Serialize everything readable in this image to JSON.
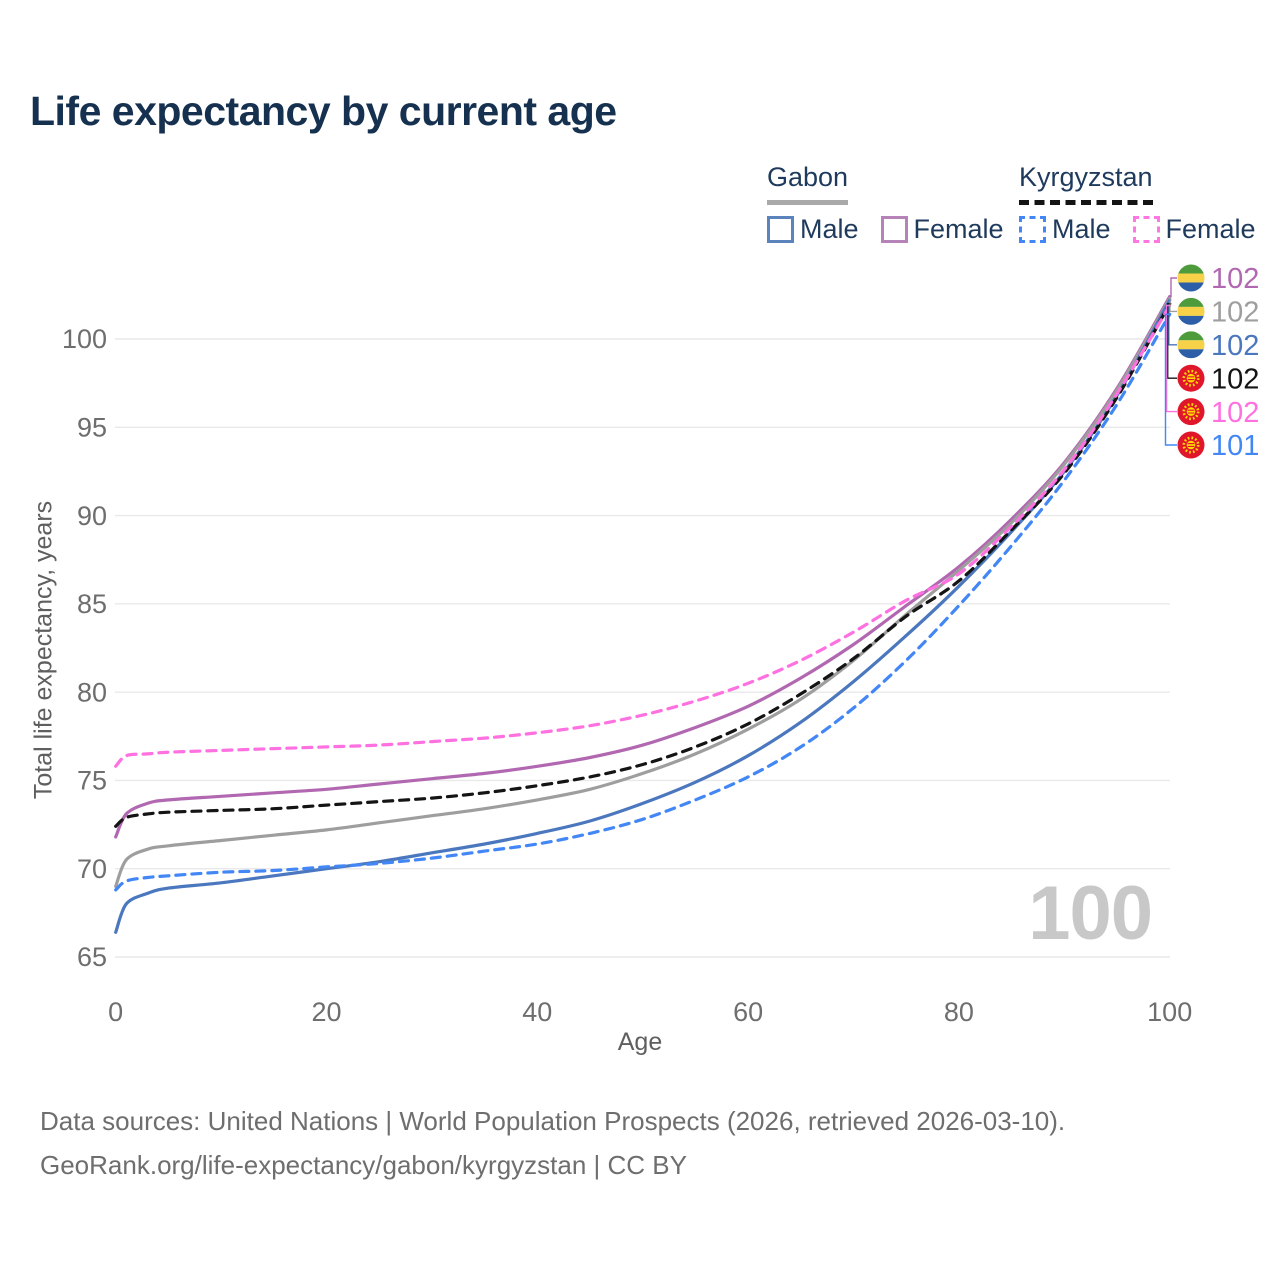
{
  "title": "Life expectancy by current age",
  "legend": {
    "groups": [
      {
        "title": "Gabon",
        "line_style": "solid",
        "items": [
          {
            "label": "Male"
          },
          {
            "label": "Female"
          }
        ]
      },
      {
        "title": "Kyrgyzstan",
        "line_style": "dashed",
        "items": [
          {
            "label": "Male"
          },
          {
            "label": "Female"
          }
        ]
      }
    ]
  },
  "chart_data": {
    "type": "line",
    "title": "Life expectancy by current age",
    "xlabel": "Age",
    "ylabel": "Total life expectancy, years",
    "xlim": [
      0,
      100
    ],
    "ylim": [
      65,
      103
    ],
    "xticks": [
      0,
      20,
      40,
      60,
      80,
      100
    ],
    "yticks": [
      65,
      70,
      75,
      80,
      85,
      90,
      95,
      100
    ],
    "grid": true,
    "legend_position": "top-right",
    "age_indicator": "100",
    "x": [
      0,
      1,
      3,
      5,
      10,
      15,
      20,
      25,
      30,
      35,
      40,
      45,
      50,
      55,
      60,
      65,
      70,
      75,
      80,
      85,
      90,
      95,
      100
    ],
    "series": [
      {
        "name": "Gabon Female",
        "country": "Gabon",
        "sex": "Female",
        "color": "#b168b1",
        "dashed": false,
        "flag": "gabon",
        "end_label": "102",
        "end_label_color": "#b168b1",
        "values": [
          71.8,
          73.1,
          73.7,
          73.9,
          74.1,
          74.3,
          74.5,
          74.8,
          75.1,
          75.4,
          75.8,
          76.3,
          77.0,
          78.0,
          79.2,
          80.8,
          82.7,
          84.9,
          87.1,
          89.8,
          93.0,
          97.2,
          102.4
        ]
      },
      {
        "name": "Gabon Total",
        "country": "Gabon",
        "sex": "Both",
        "color": "#9e9e9e",
        "dashed": false,
        "flag": "gabon",
        "end_label": "102",
        "end_label_color": "#9e9e9e",
        "values": [
          69.0,
          70.5,
          71.1,
          71.3,
          71.6,
          71.9,
          72.2,
          72.6,
          73.0,
          73.4,
          73.9,
          74.5,
          75.4,
          76.5,
          77.9,
          79.6,
          81.8,
          84.4,
          86.9,
          89.6,
          92.9,
          97.1,
          102.3
        ]
      },
      {
        "name": "Gabon Male",
        "country": "Gabon",
        "sex": "Male",
        "color": "#4a77bd",
        "dashed": false,
        "flag": "gabon",
        "end_label": "102",
        "end_label_color": "#4a77bd",
        "values": [
          66.4,
          68.0,
          68.6,
          68.9,
          69.2,
          69.6,
          70.0,
          70.4,
          70.9,
          71.4,
          72.0,
          72.7,
          73.7,
          74.9,
          76.4,
          78.3,
          80.6,
          83.2,
          86.0,
          89.1,
          92.5,
          96.8,
          102.2
        ]
      },
      {
        "name": "Kyrgyzstan Total",
        "country": "Kyrgyzstan",
        "sex": "Both",
        "color": "#141414",
        "dashed": true,
        "flag": "kyrgyzstan",
        "end_label": "102",
        "end_label_color": "#141414",
        "values": [
          72.4,
          72.9,
          73.1,
          73.2,
          73.3,
          73.4,
          73.6,
          73.8,
          74.0,
          74.3,
          74.7,
          75.2,
          75.9,
          76.9,
          78.2,
          79.9,
          81.9,
          84.3,
          86.3,
          89.2,
          92.4,
          96.7,
          102.0
        ]
      },
      {
        "name": "Kyrgyzstan Female",
        "country": "Kyrgyzstan",
        "sex": "Female",
        "color": "#ff70e0",
        "dashed": true,
        "flag": "kyrgyzstan",
        "end_label": "102",
        "end_label_color": "#ff70e0",
        "values": [
          75.8,
          76.4,
          76.5,
          76.6,
          76.7,
          76.8,
          76.9,
          77.0,
          77.2,
          77.4,
          77.7,
          78.1,
          78.7,
          79.5,
          80.5,
          81.8,
          83.4,
          85.2,
          86.7,
          89.4,
          92.6,
          96.9,
          101.9
        ]
      },
      {
        "name": "Kyrgyzstan Male",
        "country": "Kyrgyzstan",
        "sex": "Male",
        "color": "#4287f5",
        "dashed": true,
        "flag": "kyrgyzstan",
        "end_label": "101",
        "end_label_color": "#4287f5",
        "values": [
          68.8,
          69.3,
          69.5,
          69.6,
          69.8,
          69.9,
          70.1,
          70.3,
          70.6,
          71.0,
          71.4,
          72.0,
          72.8,
          73.9,
          75.2,
          76.9,
          79.1,
          81.8,
          84.9,
          88.3,
          92.0,
          96.3,
          101.4
        ]
      }
    ]
  },
  "footer": {
    "line1": "Data sources: United Nations | World Population Prospects (2026, retrieved 2026-03-10).",
    "line2": "GeoRank.org/life-expectancy/gabon/kyrgyzstan | CC BY"
  },
  "colors": {
    "title_text": "#16314f",
    "legend_text": "#1e3a5c",
    "axis_text": "#6e6e6e",
    "grid_line": "#e9e9e9",
    "watermark": "#c8c8c8",
    "gabon_flag_green": "#4e9b3c",
    "gabon_flag_yellow": "#f7d148",
    "gabon_flag_blue": "#2c5fa7",
    "kyrgyzstan_flag_red": "#e0162b",
    "kyrgyzstan_flag_yellow": "#ffd900"
  }
}
